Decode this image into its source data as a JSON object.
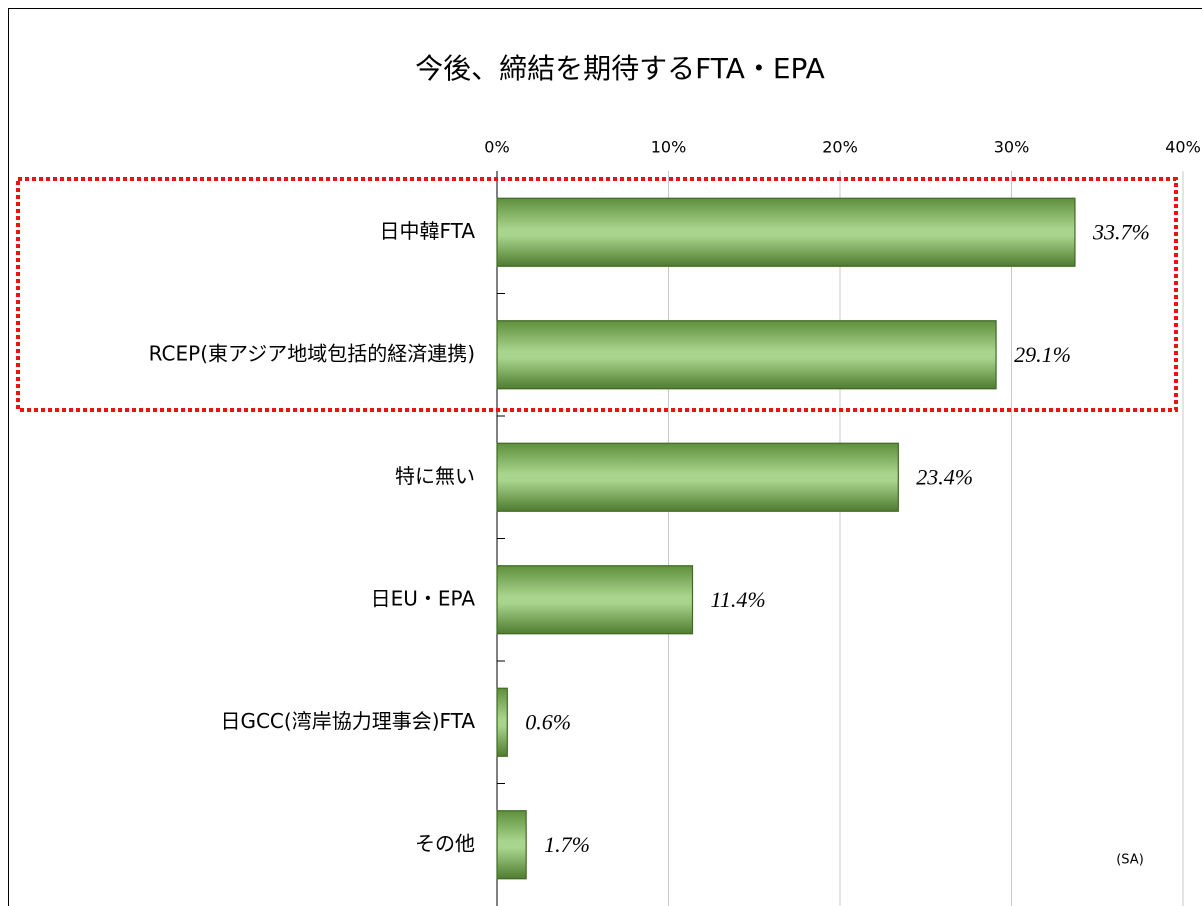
{
  "chart_data": {
    "type": "bar",
    "orientation": "horizontal",
    "title": "今後、締結を期待するFTA・EPA",
    "categories": [
      "日中韓FTA",
      "RCEP(東アジア地域包括的経済連携)",
      "特に無い",
      "日EU・EPA",
      "日GCC(湾岸協力理事会)FTA",
      "その他"
    ],
    "values": [
      33.7,
      29.1,
      23.4,
      11.4,
      0.6,
      1.7
    ],
    "value_labels": [
      "33.7%",
      "29.1%",
      "23.4%",
      "11.4%",
      "0.6%",
      "1.7%"
    ],
    "color": "#9bcb7b",
    "xlim": [
      0,
      40
    ],
    "xticks": [
      {
        "value": 0,
        "label": "0%"
      },
      {
        "value": 10,
        "label": "10%"
      },
      {
        "value": 20,
        "label": "20%"
      },
      {
        "value": 30,
        "label": "30%"
      },
      {
        "value": 40,
        "label": "40%"
      }
    ],
    "grid": true,
    "annotation": "(SA)"
  }
}
